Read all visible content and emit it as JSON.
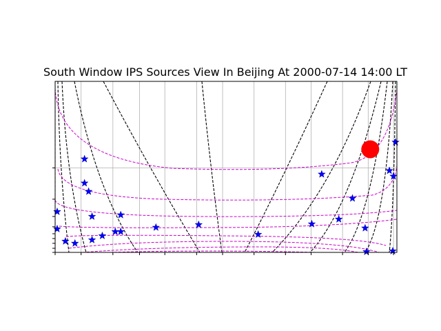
{
  "chart_data": {
    "type": "scatter",
    "title": "South Window IPS Sources View In Beijing At 2000-07-14 14:00 LT",
    "xlabel": "",
    "ylabel": "",
    "grid": true,
    "xlim": [
      0,
      100
    ],
    "ylim": [
      0,
      100
    ],
    "x_grid": [
      0,
      7.6,
      16.9,
      24.7,
      32.1,
      41.4,
      49.0,
      58.2,
      67.4,
      74.9,
      84.1,
      91.6,
      99.0
    ],
    "y_grid": [
      49.4
    ],
    "y_ticks": [
      49.4,
      31.1,
      21.0,
      15.0,
      10.9,
      8.1,
      5.3,
      2.4,
      0
    ],
    "sources": [
      {
        "x": 8.6,
        "y": 54.6
      },
      {
        "x": 8.6,
        "y": 40.5
      },
      {
        "x": 9.8,
        "y": 35.6
      },
      {
        "x": 10.8,
        "y": 21.0
      },
      {
        "x": 19.2,
        "y": 21.9
      },
      {
        "x": 0.6,
        "y": 23.8
      },
      {
        "x": 0.6,
        "y": 13.7
      },
      {
        "x": 3.0,
        "y": 6.5
      },
      {
        "x": 5.8,
        "y": 5.3
      },
      {
        "x": 10.8,
        "y": 7.3
      },
      {
        "x": 13.8,
        "y": 9.7
      },
      {
        "x": 17.6,
        "y": 12.1
      },
      {
        "x": 19.2,
        "y": 12.1
      },
      {
        "x": 29.5,
        "y": 14.6
      },
      {
        "x": 42.0,
        "y": 16.2
      },
      {
        "x": 59.4,
        "y": 10.5
      },
      {
        "x": 75.1,
        "y": 16.6
      },
      {
        "x": 78.0,
        "y": 45.7
      },
      {
        "x": 83.0,
        "y": 19.4
      },
      {
        "x": 87.0,
        "y": 31.6
      },
      {
        "x": 90.7,
        "y": 14.2
      },
      {
        "x": 91.1,
        "y": 0.4
      },
      {
        "x": 97.8,
        "y": 47.8
      },
      {
        "x": 99.0,
        "y": 44.5
      },
      {
        "x": 99.6,
        "y": 64.4
      },
      {
        "x": 98.8,
        "y": 0.8
      }
    ],
    "sun": {
      "x": 92.2,
      "y": 60.3
    },
    "colors": {
      "star": "#0000ff",
      "sun": "#ff0000",
      "dashed_black": "#000000",
      "dashed_magenta": "#cc00cc",
      "grid": "#b0b0b0"
    }
  }
}
